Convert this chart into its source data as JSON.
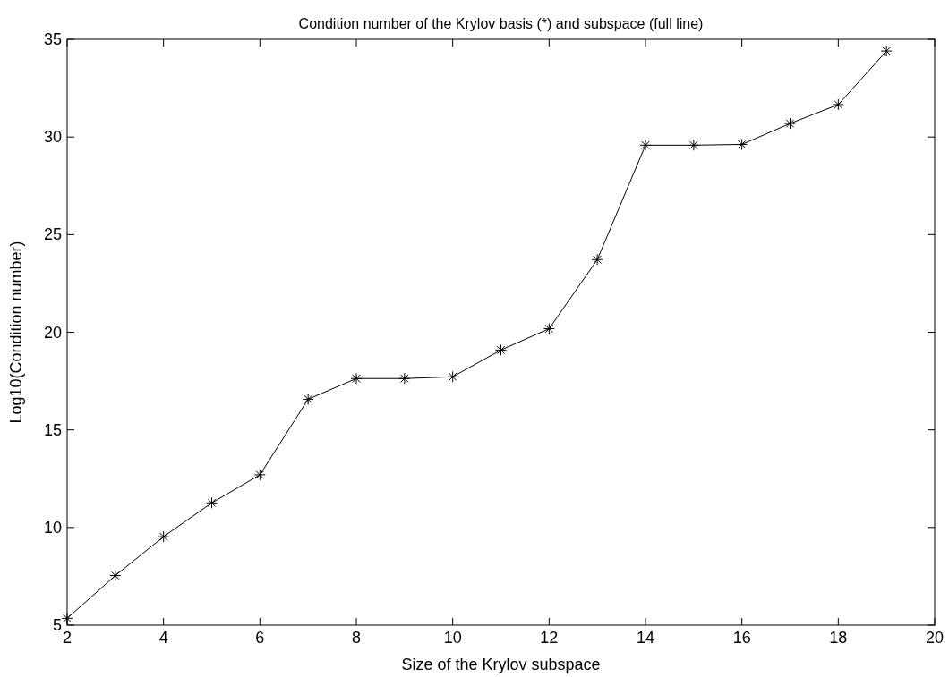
{
  "chart_data": {
    "type": "line",
    "title": "Condition number of the Krylov basis (*) and subspace (full line)",
    "xlabel": "Size of the Krylov subspace",
    "ylabel": "Log10(Condition number)",
    "x": [
      2,
      3,
      4,
      5,
      6,
      7,
      8,
      9,
      10,
      11,
      12,
      13,
      14,
      15,
      16,
      17,
      18,
      19
    ],
    "series": [
      {
        "color": "#000000",
        "values": [
          5.35,
          7.54,
          9.53,
          11.26,
          12.7,
          16.57,
          17.63,
          17.63,
          17.72,
          19.09,
          20.18,
          23.72,
          29.58,
          29.58,
          29.62,
          30.69,
          31.66,
          34.4
        ]
      }
    ],
    "xlim": [
      2,
      20
    ],
    "xticks": [
      2,
      4,
      6,
      8,
      10,
      12,
      14,
      16,
      18,
      20
    ],
    "ylim": [
      5,
      35
    ],
    "yticks": [
      5,
      10,
      15,
      20,
      25,
      30,
      35
    ],
    "marker": "cross",
    "line_style": "solid",
    "grid": false
  }
}
